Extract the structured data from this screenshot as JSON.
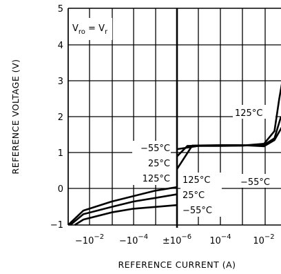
{
  "chart_data": {
    "type": "line",
    "xlabel": "REFERENCE CURRENT (A)",
    "ylabel": "REFERENCE VOLTAGE (V)",
    "ylim": [
      -1,
      5
    ],
    "grid": true,
    "x_tick_labels": [
      {
        "base": "−10",
        "exp": "−2"
      },
      {
        "base": "−10",
        "exp": "−4"
      },
      {
        "base": "±10",
        "exp": "−6"
      },
      {
        "base": "10",
        "exp": "−4"
      },
      {
        "base": "10",
        "exp": "−2"
      }
    ],
    "y_tick_labels": [
      "5",
      "4",
      "3",
      "2",
      "1",
      "0",
      "−1"
    ],
    "condition": {
      "v_main": "V",
      "v_sub": "ro",
      "eq": " = V",
      "r_sub": "r"
    },
    "annotations": {
      "neg_left": [
        "−55°C",
        "25°C",
        "125°C"
      ],
      "neg_right": [
        "125°C",
        "25°C",
        "−55°C"
      ],
      "pos_top": "125°C",
      "pos_bottom": "−55°C"
    },
    "series": [
      {
        "name": "125°C",
        "negative": [
          [
            -0.1,
            -1.0
          ],
          [
            -0.02,
            -0.6
          ],
          [
            -0.001,
            -0.35
          ],
          [
            -0.0001,
            -0.2
          ],
          [
            -1e-05,
            -0.05
          ],
          [
            -1e-06,
            0.05
          ]
        ],
        "positive": [
          [
            1e-06,
            1.1
          ],
          [
            1e-05,
            1.19
          ],
          [
            0.0001,
            1.19
          ],
          [
            0.001,
            1.2
          ],
          [
            0.01,
            1.25
          ],
          [
            0.03,
            1.6
          ],
          [
            0.05,
            2.5
          ],
          [
            0.08,
            3.2
          ]
        ]
      },
      {
        "name": "25°C",
        "negative": [
          [
            -0.08,
            -1.0
          ],
          [
            -0.02,
            -0.7
          ],
          [
            -0.001,
            -0.5
          ],
          [
            -0.0001,
            -0.35
          ],
          [
            -1e-05,
            -0.25
          ],
          [
            -1e-06,
            -0.15
          ]
        ],
        "positive": [
          [
            1e-06,
            0.9
          ],
          [
            3e-06,
            1.19
          ],
          [
            0.0001,
            1.2
          ],
          [
            0.001,
            1.2
          ],
          [
            0.01,
            1.22
          ],
          [
            0.03,
            1.4
          ],
          [
            0.06,
            2.0
          ]
        ]
      },
      {
        "name": "−55°C",
        "negative": [
          [
            -0.05,
            -1.0
          ],
          [
            -0.02,
            -0.85
          ],
          [
            -0.001,
            -0.65
          ],
          [
            -0.0001,
            -0.55
          ],
          [
            -1e-05,
            -0.5
          ],
          [
            -1e-06,
            -0.45
          ]
        ],
        "positive": [
          [
            1e-06,
            0.55
          ],
          [
            5e-06,
            1.2
          ],
          [
            0.0001,
            1.21
          ],
          [
            0.001,
            1.21
          ],
          [
            0.01,
            1.18
          ],
          [
            0.03,
            1.35
          ],
          [
            0.08,
            1.8
          ]
        ]
      }
    ]
  }
}
